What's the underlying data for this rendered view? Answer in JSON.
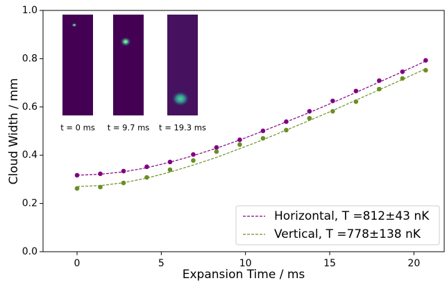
{
  "chart_data": {
    "type": "scatter",
    "xlabel": "Expansion Time / ms",
    "ylabel": "Cloud Width / mm",
    "xlim": [
      -2.02,
      21.8
    ],
    "ylim": [
      0,
      1
    ],
    "xticks": [
      0,
      5,
      10,
      15,
      20
    ],
    "yticks": [
      {
        "value": 0,
        "label": "0.0"
      },
      0.2,
      0.4,
      0.6,
      0.8,
      {
        "value": 1,
        "label": "1.0"
      }
    ],
    "legend": "lower right",
    "x": [
      0,
      1.38,
      2.76,
      4.14,
      5.52,
      6.9,
      8.28,
      9.66,
      11.04,
      12.42,
      13.8,
      15.18,
      16.56,
      17.94,
      19.32,
      20.7
    ],
    "series": [
      {
        "name": "Horizontal, T =812±43 nK",
        "color": "#800080",
        "values": [
          0.317,
          0.323,
          0.334,
          0.352,
          0.372,
          0.403,
          0.432,
          0.464,
          0.501,
          0.539,
          0.582,
          0.625,
          0.666,
          0.709,
          0.746,
          0.793
        ],
        "fit": [
          0.317,
          0.321,
          0.331,
          0.348,
          0.371,
          0.398,
          0.429,
          0.463,
          0.5,
          0.538,
          0.577,
          0.618,
          0.66,
          0.703,
          0.746,
          0.79
        ]
      },
      {
        "name": "Vertical, T =778±138 nK",
        "color": "#6b8e23",
        "values": [
          0.262,
          0.268,
          0.285,
          0.308,
          0.34,
          0.378,
          0.415,
          0.444,
          0.47,
          0.504,
          0.553,
          0.582,
          0.622,
          0.674,
          0.718,
          0.752
        ],
        "fit": [
          0.27,
          0.274,
          0.286,
          0.305,
          0.33,
          0.359,
          0.391,
          0.427,
          0.464,
          0.504,
          0.544,
          0.585,
          0.628,
          0.671,
          0.714,
          0.758
        ]
      }
    ],
    "insets": [
      "t = 0 ms",
      "t = 9.7 ms",
      "t = 19.3 ms"
    ]
  }
}
